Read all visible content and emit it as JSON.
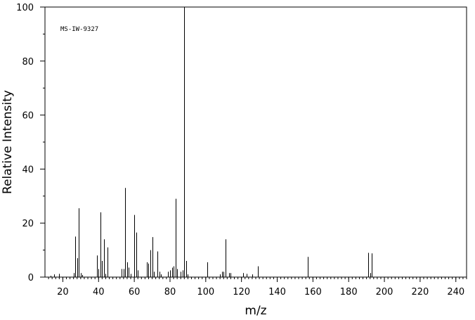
{
  "chart_data": {
    "type": "bar",
    "title": "",
    "annotation": "MS-IW-9327",
    "xlabel": "m/z",
    "ylabel": "Relative Intensity",
    "xlim": [
      10,
      246
    ],
    "ylim": [
      0,
      100
    ],
    "xticks": [
      20,
      40,
      60,
      80,
      100,
      120,
      140,
      160,
      180,
      200,
      220,
      240
    ],
    "yticks": [
      0,
      20,
      40,
      60,
      80,
      100
    ],
    "grid": false,
    "legend": "none",
    "bar_color": "#000000",
    "x": [
      13,
      15,
      18,
      26,
      27,
      28,
      29,
      30,
      31,
      39,
      40,
      41,
      42,
      43,
      44,
      45,
      53,
      54,
      55,
      56,
      57,
      58,
      60,
      61,
      62,
      67,
      68,
      69,
      70,
      71,
      73,
      74,
      75,
      79,
      80,
      81,
      82,
      83,
      84,
      86,
      87,
      88,
      89,
      90,
      101,
      108,
      109,
      110,
      111,
      113,
      114,
      121,
      123,
      126,
      129,
      157,
      191,
      192,
      193
    ],
    "values": [
      0.5,
      1,
      1.2,
      1.5,
      15,
      7,
      25.5,
      1.5,
      0.8,
      8,
      3,
      24,
      6,
      14,
      1.2,
      11,
      3,
      3,
      33,
      5.5,
      3.5,
      1.2,
      23,
      16.5,
      2.5,
      5.5,
      5,
      10,
      14.8,
      2,
      9.5,
      2,
      1,
      2,
      2.5,
      3.5,
      4,
      29,
      3,
      2,
      2.5,
      100,
      6,
      1,
      5.5,
      1,
      2,
      2,
      14,
      1.5,
      1.5,
      1.5,
      1.2,
      1,
      4,
      7.5,
      9,
      1.5,
      8.8
    ]
  }
}
